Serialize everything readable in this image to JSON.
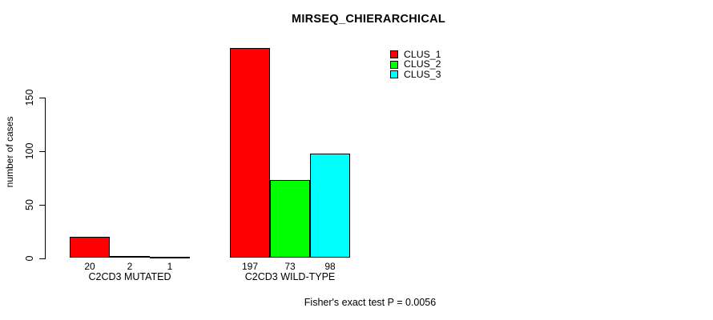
{
  "chart_data": {
    "type": "bar",
    "title": "MIRSEQ_CHIERARCHICAL",
    "ylabel": "number of cases",
    "xlabel": "",
    "yticks": [
      0,
      50,
      100,
      150
    ],
    "ylim": [
      0,
      150
    ],
    "grid": false,
    "show_bar_values": true,
    "legend_position": "top-right-inside",
    "categories": [
      "C2CD3 MUTATED",
      "C2CD3 WILD-TYPE"
    ],
    "series": [
      {
        "name": "CLUS_1",
        "color": "#ff0000",
        "values": [
          20,
          197
        ]
      },
      {
        "name": "CLUS_2",
        "color": "#00ff00",
        "values": [
          2,
          73
        ]
      },
      {
        "name": "CLUS_3",
        "color": "#00ffff",
        "values": [
          1,
          98
        ]
      }
    ],
    "annotation": "Fisher's exact test P = 0.0056"
  },
  "colors": {
    "background": "#ffffff",
    "axis": "#000000",
    "text": "#000000"
  }
}
